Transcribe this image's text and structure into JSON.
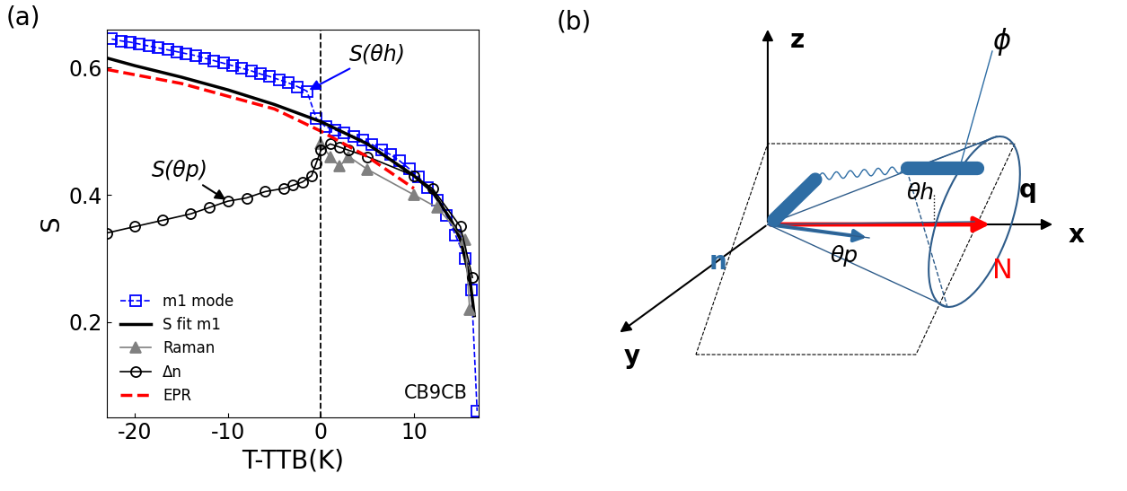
{
  "chart_data": {
    "type": "line",
    "title": "(a)",
    "x_label": "T-TTB(K)",
    "y_label": "S",
    "xlim": [
      -23,
      17
    ],
    "xticks": [
      -20,
      -10,
      0,
      10
    ],
    "ylim": [
      0.05,
      0.66
    ],
    "yticks": [
      0.2,
      0.4,
      0.6
    ],
    "reference_line_x": 0,
    "legend": "lower left",
    "annotations": [
      "S(θh)",
      "S(θp)",
      "CB9CB"
    ],
    "series": [
      {
        "name": "m1 mode",
        "color": "#0000ff",
        "marker": "square",
        "line_style": "dashed",
        "x": [
          -22.5,
          -21.5,
          -20.5,
          -19.5,
          -18.5,
          -17.5,
          -16.5,
          -15.5,
          -14.5,
          -13.5,
          -12.5,
          -11.5,
          -10.5,
          -9.5,
          -8.5,
          -7.5,
          -6.5,
          -5.5,
          -4.5,
          -3.5,
          -2.5,
          -1.5,
          -0.5,
          0.5,
          1.5,
          2.5,
          3.5,
          4.5,
          5.5,
          6.5,
          7.5,
          8.5,
          9.5,
          10.5,
          11.5,
          12.5,
          13.5,
          14.5,
          15.5,
          16.2,
          16.8
        ],
        "values": [
          0.645,
          0.642,
          0.64,
          0.637,
          0.634,
          0.631,
          0.628,
          0.625,
          0.622,
          0.619,
          0.615,
          0.611,
          0.607,
          0.603,
          0.599,
          0.595,
          0.59,
          0.586,
          0.581,
          0.576,
          0.57,
          0.563,
          0.52,
          0.507,
          0.502,
          0.497,
          0.492,
          0.486,
          0.479,
          0.471,
          0.463,
          0.453,
          0.441,
          0.428,
          0.412,
          0.392,
          0.368,
          0.336,
          0.3,
          0.25,
          0.06
        ]
      },
      {
        "name": "S fit m1",
        "color": "#000000",
        "marker": "none",
        "line_style": "solid",
        "x": [
          -23,
          -20,
          -15,
          -10,
          -5,
          0,
          5,
          10,
          12,
          14,
          15,
          16,
          16.5
        ],
        "values": [
          0.615,
          0.603,
          0.585,
          0.565,
          0.542,
          0.515,
          0.48,
          0.43,
          0.405,
          0.36,
          0.33,
          0.27,
          0.21
        ]
      },
      {
        "name": "Raman",
        "color": "#808080",
        "marker": "triangle",
        "line_style": "solid",
        "x": [
          0,
          1,
          2,
          3,
          5,
          10,
          12.5,
          15.5,
          16
        ],
        "values": [
          0.48,
          0.46,
          0.445,
          0.46,
          0.44,
          0.4,
          0.38,
          0.33,
          0.22
        ]
      },
      {
        "name": "Δn",
        "color": "#000000",
        "marker": "circle",
        "line_style": "solid",
        "x": [
          -23,
          -20,
          -17,
          -14,
          -12,
          -10,
          -8,
          -6,
          -4,
          -3,
          -2,
          -1,
          -0.5,
          0,
          1,
          2,
          3,
          5,
          10,
          12,
          15,
          16.3
        ],
        "values": [
          0.34,
          0.35,
          0.36,
          0.37,
          0.38,
          0.39,
          0.395,
          0.405,
          0.41,
          0.415,
          0.42,
          0.43,
          0.45,
          0.47,
          0.48,
          0.475,
          0.47,
          0.46,
          0.43,
          0.41,
          0.35,
          0.27
        ]
      },
      {
        "name": "EPR",
        "color": "#ff0000",
        "marker": "none",
        "line_style": "dashed",
        "x": [
          -23,
          -15,
          -10,
          -5,
          0,
          5,
          10
        ],
        "values": [
          0.597,
          0.575,
          0.555,
          0.535,
          0.5,
          0.46,
          0.41
        ]
      }
    ]
  },
  "diagram": {
    "panel_label": "(b)",
    "labels": {
      "z": "z",
      "x": "x",
      "y": "y",
      "q": "q",
      "N": "N",
      "n": "n",
      "theta_h": "θh",
      "theta_p": "θp",
      "phi": "ϕ"
    }
  }
}
